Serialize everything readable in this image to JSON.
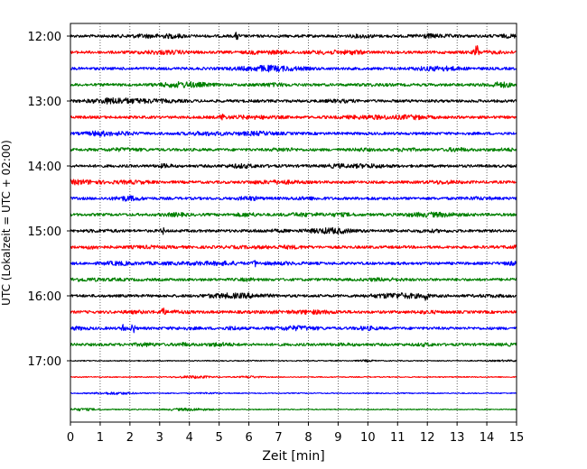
{
  "chart_data": {
    "type": "line",
    "title": "",
    "xlabel": "Zeit  [min]",
    "ylabel": "UTC (Lokalzeit = UTC + 02:00)",
    "xlim": [
      0,
      15
    ],
    "x_ticks": [
      0,
      1,
      2,
      3,
      4,
      5,
      6,
      7,
      8,
      9,
      10,
      11,
      12,
      13,
      14,
      15
    ],
    "y_tick_labels": [
      "12:00",
      "13:00",
      "14:00",
      "15:00",
      "16:00",
      "17:00"
    ],
    "grid": "vertical dotted at each minute",
    "trace_interval_minutes": 15,
    "series_colors": [
      "#000000",
      "#ff0000",
      "#0000ff",
      "#008000"
    ],
    "traces": [
      {
        "start": "12:00",
        "color": "#000000",
        "events": [
          {
            "t": 5.6,
            "amp": 4
          }
        ]
      },
      {
        "start": "12:15",
        "color": "#ff0000",
        "events": [
          {
            "t": 13.65,
            "amp": 9
          }
        ]
      },
      {
        "start": "12:30",
        "color": "#0000ff",
        "events": []
      },
      {
        "start": "12:45",
        "color": "#008000",
        "events": []
      },
      {
        "start": "13:00",
        "color": "#000000",
        "events": []
      },
      {
        "start": "13:15",
        "color": "#ff0000",
        "events": [
          {
            "t": 5.1,
            "amp": 4
          }
        ]
      },
      {
        "start": "13:30",
        "color": "#0000ff",
        "events": []
      },
      {
        "start": "13:45",
        "color": "#008000",
        "events": []
      },
      {
        "start": "14:00",
        "color": "#000000",
        "events": []
      },
      {
        "start": "14:15",
        "color": "#ff0000",
        "events": []
      },
      {
        "start": "14:30",
        "color": "#0000ff",
        "events": []
      },
      {
        "start": "14:45",
        "color": "#008000",
        "events": []
      },
      {
        "start": "15:00",
        "color": "#000000",
        "events": [
          {
            "t": 3.1,
            "amp": 3
          }
        ]
      },
      {
        "start": "15:15",
        "color": "#ff0000",
        "events": []
      },
      {
        "start": "15:30",
        "color": "#0000ff",
        "events": [
          {
            "t": 6.2,
            "amp": 3
          }
        ]
      },
      {
        "start": "15:45",
        "color": "#008000",
        "events": []
      },
      {
        "start": "16:00",
        "color": "#000000",
        "events": [
          {
            "t": 11.95,
            "amp": 5
          }
        ]
      },
      {
        "start": "16:15",
        "color": "#ff0000",
        "events": [
          {
            "t": 3.1,
            "amp": 5
          }
        ]
      },
      {
        "start": "16:30",
        "color": "#0000ff",
        "events": [
          {
            "t": 1.8,
            "amp": 5
          },
          {
            "t": 2.1,
            "amp": 6
          }
        ]
      },
      {
        "start": "16:45",
        "color": "#008000",
        "events": []
      },
      {
        "start": "17:00",
        "color": "#000000",
        "events": []
      },
      {
        "start": "17:15",
        "color": "#ff0000",
        "events": []
      },
      {
        "start": "17:30",
        "color": "#0000ff",
        "events": []
      },
      {
        "start": "17:45",
        "color": "#008000",
        "events": []
      }
    ]
  }
}
